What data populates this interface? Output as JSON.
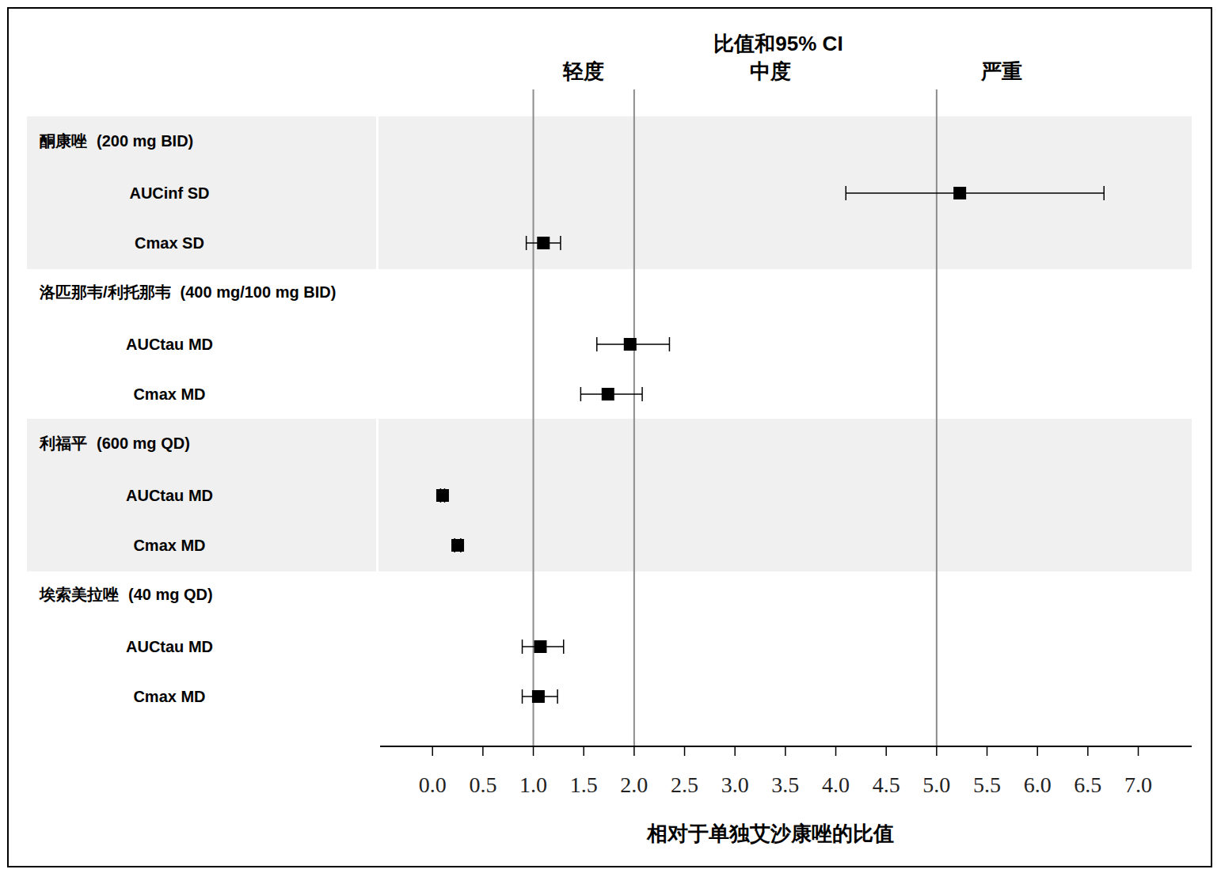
{
  "chart_data": {
    "type": "forest",
    "title": "比值和95% CI",
    "x_label": "相对于单独艾沙康唑的比值",
    "xlim": [
      -0.52,
      7.53
    ],
    "xticks": [
      {
        "value": 0,
        "label": "0.0"
      },
      0.5,
      {
        "value": 1,
        "label": "1.0"
      },
      1.5,
      {
        "value": 2,
        "label": "2.0"
      },
      2.5,
      {
        "value": 3,
        "label": "3.0"
      },
      3.5,
      {
        "value": 4,
        "label": "4.0"
      },
      4.5,
      {
        "value": 5,
        "label": "5.0"
      },
      5.5,
      {
        "value": 6,
        "label": "6.0"
      },
      6.5,
      {
        "value": 7,
        "label": "7.0"
      }
    ],
    "reference_lines": [
      1,
      2,
      5
    ],
    "regions": [
      "轻度",
      "中度",
      "严重"
    ],
    "color": "#000000",
    "marker": "square",
    "groups": [
      {
        "name": "酮康唑",
        "dose": "(200 mg BID)",
        "rows": [
          {
            "label": "AUCinf SD",
            "value": 5.23,
            "ci_low": 4.1,
            "ci_high": 6.66
          },
          {
            "label": "Cmax SD",
            "value": 1.1,
            "ci_low": 0.93,
            "ci_high": 1.27
          }
        ]
      },
      {
        "name": "洛匹那韦/利托那韦",
        "dose": "(400 mg/100 mg BID)",
        "rows": [
          {
            "label": "AUCtau MD",
            "value": 1.96,
            "ci_low": 1.63,
            "ci_high": 2.35
          },
          {
            "label": "Cmax MD",
            "value": 1.74,
            "ci_low": 1.47,
            "ci_high": 2.08
          }
        ]
      },
      {
        "name": "利福平",
        "dose": "(600 mg QD)",
        "rows": [
          {
            "label": "AUCtau MD",
            "value": 0.1,
            "ci_low": 0.08,
            "ci_high": 0.12
          },
          {
            "label": "Cmax MD",
            "value": 0.25,
            "ci_low": 0.22,
            "ci_high": 0.28
          }
        ]
      },
      {
        "name": "埃索美拉唑",
        "dose": "(40 mg QD)",
        "rows": [
          {
            "label": "AUCtau MD",
            "value": 1.07,
            "ci_low": 0.89,
            "ci_high": 1.3
          },
          {
            "label": "Cmax MD",
            "value": 1.05,
            "ci_low": 0.89,
            "ci_high": 1.24
          }
        ]
      }
    ]
  }
}
